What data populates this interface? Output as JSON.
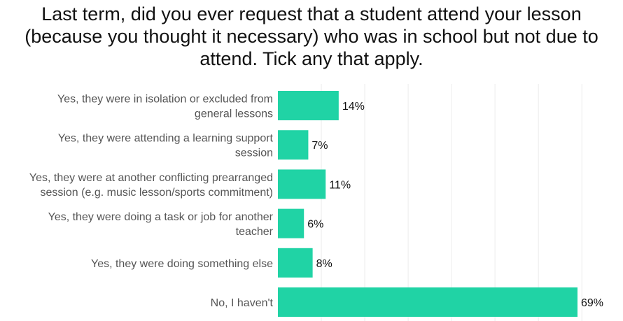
{
  "chart_data": {
    "type": "bar",
    "orientation": "horizontal",
    "title": "Last term, did you ever request that a student attend your lesson (because you thought it necessary) who was in school but not due to attend. Tick any that apply.",
    "categories": [
      [
        "Yes, they were in isolation or excluded from",
        "general lessons"
      ],
      [
        "Yes, they were attending a learning support",
        "session"
      ],
      [
        "Yes, they were at another conflicting prearranged",
        "session (e.g. music lesson/sports commitment)"
      ],
      [
        "Yes, they were doing a task or job for another",
        "teacher"
      ],
      [
        "Yes, they were doing something else"
      ],
      [
        "No, I haven't"
      ]
    ],
    "values": [
      14,
      7,
      11,
      6,
      8,
      69
    ],
    "value_labels": [
      "14%",
      "7%",
      "11%",
      "6%",
      "8%",
      "69%"
    ],
    "unit": "%",
    "xlim": [
      0,
      75
    ],
    "grid": true,
    "bar_color": "#20d3a5"
  }
}
